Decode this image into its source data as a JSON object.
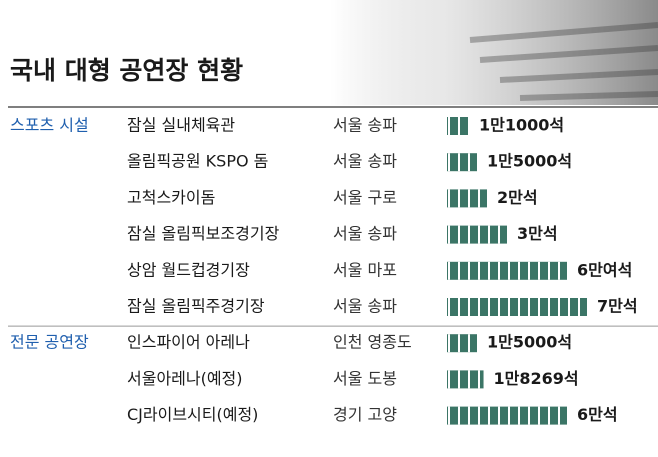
{
  "chart_data": {
    "type": "bar",
    "title": "국내 대형 공연장 현황",
    "color": "#3b7566",
    "groups": [
      {
        "name": "스포츠 시설",
        "categories": [
          "잠실 실내체육관",
          "올림픽공원 KSPO 돔",
          "고척스카이돔",
          "잠실 올림픽보조경기장",
          "상암 월드컵경기장",
          "잠실 올림픽주경기장"
        ],
        "locations": [
          "서울 송파",
          "서울 송파",
          "서울 구로",
          "서울 송파",
          "서울 마포",
          "서울 송파"
        ],
        "values": [
          11000,
          15000,
          20000,
          30000,
          60000,
          70000
        ],
        "value_labels": [
          "1만1000석",
          "1만5000석",
          "2만석",
          "3만석",
          "6만여석",
          "7만석"
        ]
      },
      {
        "name": "전문 공연장",
        "categories": [
          "인스파이어 아레나",
          "서울아레나(예정)",
          "CJ라이브시티(예정)"
        ],
        "locations": [
          "인천 영종도",
          "서울 도봉",
          "경기 고양"
        ],
        "values": [
          15000,
          18269,
          60000
        ],
        "value_labels": [
          "1만5000석",
          "1만8269석",
          "6만석"
        ]
      }
    ]
  }
}
